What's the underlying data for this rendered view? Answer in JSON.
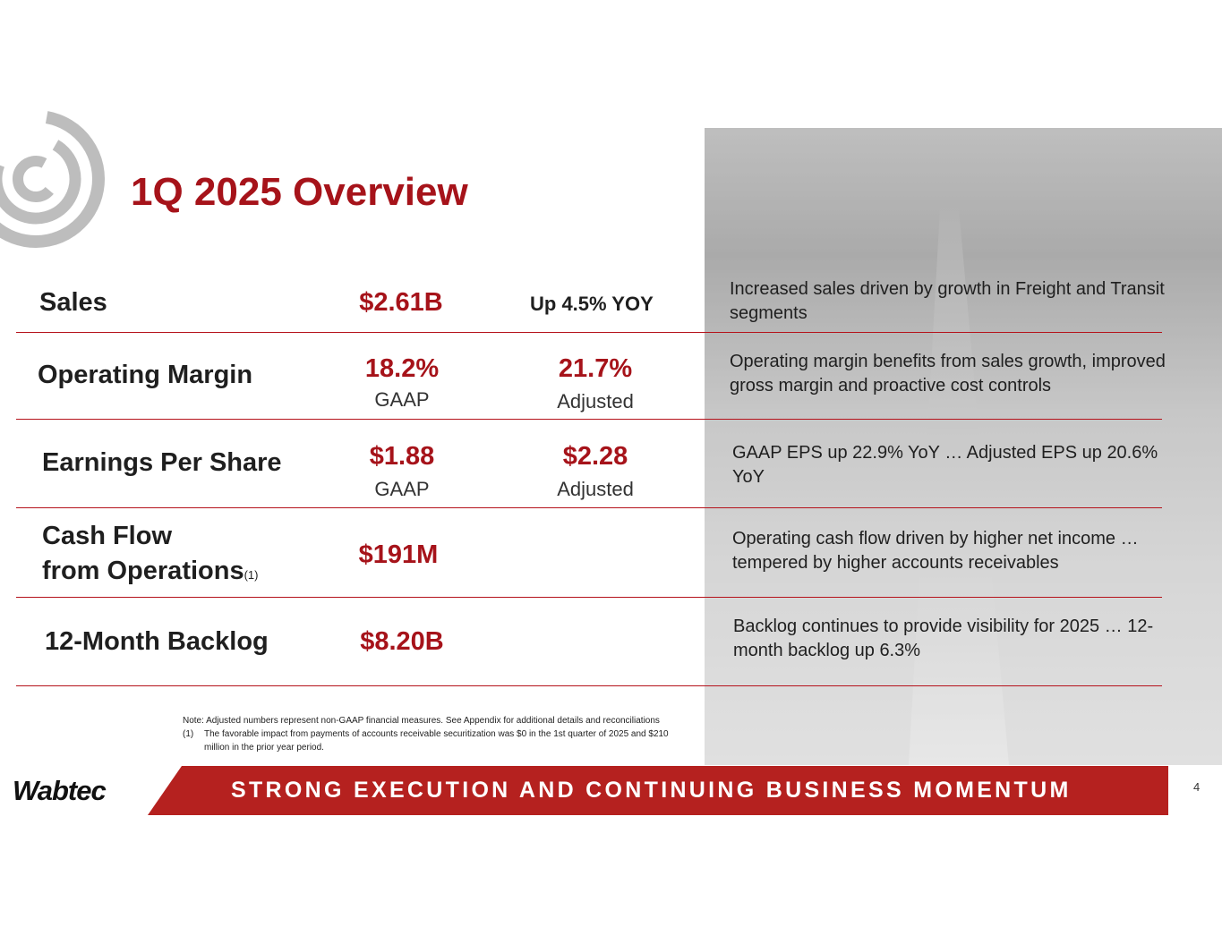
{
  "title": "1Q 2025 Overview",
  "rows": [
    {
      "label": "Sales",
      "value": "$2.61B",
      "value2": "Up 4.5% YOY",
      "desc": "Increased sales driven by growth in Freight and Transit segments"
    },
    {
      "label": "Operating Margin",
      "value": "18.2%",
      "value_sub": "GAAP",
      "value2": "21.7%",
      "value2_sub": "Adjusted",
      "desc": "Operating margin benefits from sales growth, improved gross margin and proactive cost controls"
    },
    {
      "label": "Earnings Per Share",
      "value": "$1.88",
      "value_sub": "GAAP",
      "value2": "$2.28",
      "value2_sub": "Adjusted",
      "desc": "GAAP EPS up 22.9% YoY … Adjusted EPS up 20.6% YoY"
    },
    {
      "label_line1": "Cash Flow",
      "label_line2": "from Operations",
      "label_sup": "(1)",
      "value": "$191M",
      "desc": "Operating cash flow driven by higher net income … tempered by higher accounts receivables"
    },
    {
      "label": "12-Month Backlog",
      "value": "$8.20B",
      "desc": "Backlog continues to provide visibility for 2025 … 12-month backlog up 6.3%"
    }
  ],
  "note": "Note:  Adjusted numbers represent non-GAAP financial measures. See Appendix for additional details and reconciliations",
  "footnote_marker": "(1)",
  "footnote": "The favorable impact from payments of accounts receivable securitization was $0 in the 1st quarter of 2025 and $210 million in the prior year period.",
  "brand": "Wabtec",
  "banner": "STRONG EXECUTION AND CONTINUING BUSINESS MOMENTUM",
  "page_number": "4",
  "colors": {
    "accent": "#a6131a",
    "banner": "#b5211f"
  }
}
